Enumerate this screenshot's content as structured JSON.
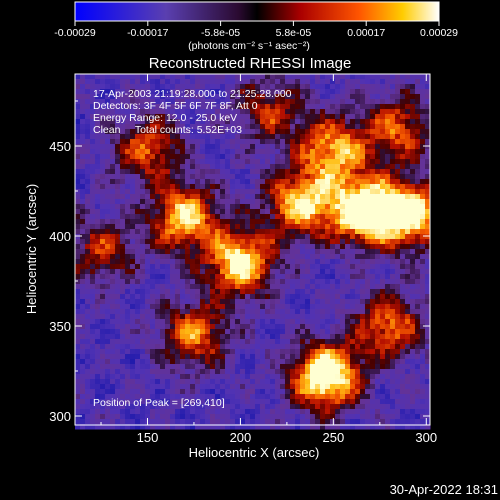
{
  "colorbar": {
    "ticks": [
      "-0.00029",
      "-0.00017",
      "-5.8e-05",
      "5.8e-05",
      "0.00017",
      "0.00029"
    ],
    "unit_label": "(photons cm⁻² s⁻¹ asec⁻²)"
  },
  "chart_data": {
    "type": "heatmap",
    "title": "Reconstructed RHESSI Image",
    "xlabel": "Heliocentric X (arcsec)",
    "ylabel": "Heliocentric Y (arcsec)",
    "xlim": [
      111,
      302
    ],
    "ylim": [
      295,
      490
    ],
    "xticks": [
      150,
      200,
      250,
      300
    ],
    "yticks": [
      300,
      350,
      400,
      450
    ],
    "colormap": "hessi-fire",
    "value_range": [
      -0.00029,
      0.00029
    ],
    "peak_position": [
      269,
      410
    ],
    "sources": [
      {
        "x": 246,
        "y": 322,
        "intensity": 1.0
      },
      {
        "x": 266,
        "y": 414,
        "intensity": 0.95
      },
      {
        "x": 292,
        "y": 412,
        "intensity": 0.85
      },
      {
        "x": 232,
        "y": 418,
        "intensity": 0.75
      },
      {
        "x": 200,
        "y": 385,
        "intensity": 0.85
      },
      {
        "x": 170,
        "y": 410,
        "intensity": 0.75
      },
      {
        "x": 150,
        "y": 448,
        "intensity": 0.55
      },
      {
        "x": 250,
        "y": 448,
        "intensity": 0.7
      },
      {
        "x": 175,
        "y": 345,
        "intensity": 0.6
      },
      {
        "x": 280,
        "y": 350,
        "intensity": 0.6
      },
      {
        "x": 285,
        "y": 460,
        "intensity": 0.55
      },
      {
        "x": 125,
        "y": 392,
        "intensity": 0.45
      },
      {
        "x": 215,
        "y": 470,
        "intensity": 0.45
      }
    ]
  },
  "annotations": {
    "time_range": "17-Apr-2003 21:19:28.000 to 21:25:28.000",
    "detectors": "Detectors: 3F 4F 5F 6F 7F 8F, Att 0",
    "energy": "Energy Range: 12.0 - 25.0 keV",
    "clean": "Clean     Total counts: 5.52E+03",
    "peak": "Position of Peak = [269,410]"
  },
  "footer": {
    "timestamp": "30-Apr-2022 18:31"
  }
}
